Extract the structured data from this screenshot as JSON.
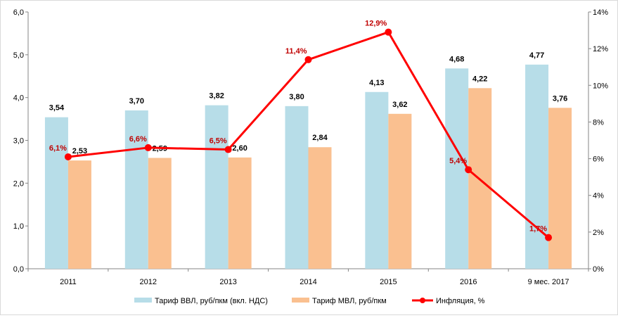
{
  "chart_data": {
    "type": "bar",
    "categories": [
      "2011",
      "2012",
      "2013",
      "2014",
      "2015",
      "2016",
      "9 мес. 2017"
    ],
    "series": [
      {
        "name": "Тариф ВВЛ, руб/пкм (вкл. НДС)",
        "type": "bar",
        "axis": "left",
        "color": "#b7dde8",
        "values": [
          3.54,
          3.7,
          3.82,
          3.8,
          4.13,
          4.68,
          4.77
        ],
        "labels": [
          "3,54",
          "3,70",
          "3,82",
          "3,80",
          "4,13",
          "4,68",
          "4,77"
        ]
      },
      {
        "name": "Тариф МВЛ, руб/пкм",
        "type": "bar",
        "axis": "left",
        "color": "#fac090",
        "values": [
          2.53,
          2.59,
          2.6,
          2.84,
          3.62,
          4.22,
          3.76
        ],
        "labels": [
          "2,53",
          "2,59",
          "2,60",
          "2,84",
          "3,62",
          "4,22",
          "3,76"
        ]
      },
      {
        "name": "Инфляция, %",
        "type": "line",
        "axis": "right",
        "color": "#ff0000",
        "marker_color": "#ff0000",
        "label_color": "#c00000",
        "values": [
          6.1,
          6.6,
          6.5,
          11.4,
          12.9,
          5.4,
          1.7
        ],
        "labels": [
          "6,1%",
          "6,6%",
          "6,5%",
          "11,4%",
          "12,9%",
          "5,4%",
          "1,7%"
        ]
      }
    ],
    "ylim": [
      0,
      6
    ],
    "y_ticks": [
      0,
      1,
      2,
      3,
      4,
      5,
      6
    ],
    "y_tick_labels": [
      "0,0",
      "1,0",
      "2,0",
      "3,0",
      "4,0",
      "5,0",
      "6,0"
    ],
    "y2lim": [
      0,
      14
    ],
    "y2_ticks": [
      0,
      2,
      4,
      6,
      8,
      10,
      12,
      14
    ],
    "y2_tick_labels": [
      "0%",
      "2%",
      "4%",
      "6%",
      "8%",
      "10%",
      "12%",
      "14%"
    ],
    "grid": false,
    "legend_position": "bottom",
    "axis_color": "#868686"
  }
}
